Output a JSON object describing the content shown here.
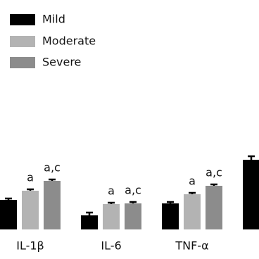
{
  "chart_data": {
    "type": "bar",
    "categories": [
      "IL-1β",
      "IL-6",
      "TNF-α",
      null
    ],
    "series": [
      {
        "name": "Mild",
        "color": "#000000",
        "values": [
          42,
          20,
          37,
          99
        ],
        "errors": [
          2,
          4,
          2,
          5
        ]
      },
      {
        "name": "Moderate",
        "color": "#b3b3b3",
        "values": [
          55,
          36,
          50,
          null
        ],
        "errors": [
          2,
          2,
          2,
          null
        ],
        "labels": [
          "a",
          "a",
          "a",
          null
        ]
      },
      {
        "name": "Severe",
        "color": "#8c8c8c",
        "values": [
          69,
          37,
          62,
          null
        ],
        "errors": [
          2,
          2,
          2,
          null
        ],
        "labels": [
          "a,c",
          "a,c",
          "a,c",
          null
        ]
      }
    ]
  }
}
